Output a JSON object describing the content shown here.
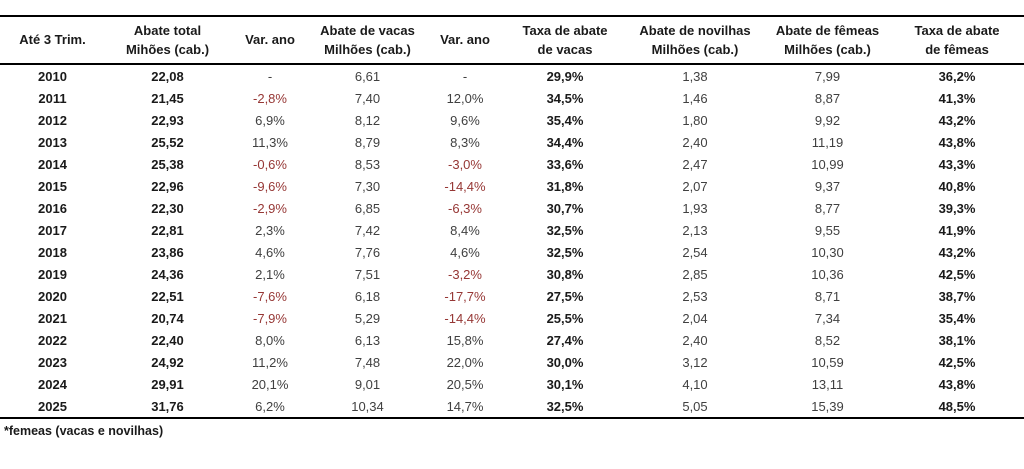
{
  "colors": {
    "negative_value": "#963735",
    "bold_text": "#1a1a1a",
    "regular_text": "#404040",
    "border": "#000000"
  },
  "chart_data": {
    "type": "table",
    "title": "",
    "footnote": "*femeas (vacas e novilhas)",
    "columns": [
      {
        "line1": "Até 3 Trim.",
        "line2": ""
      },
      {
        "line1": "Abate total",
        "line2": "Mihões (cab.)"
      },
      {
        "line1": "Var. ano",
        "line2": ""
      },
      {
        "line1": "Abate de vacas",
        "line2": "Milhões (cab.)"
      },
      {
        "line1": "Var. ano",
        "line2": ""
      },
      {
        "line1": "Taxa de abate",
        "line2": "de vacas"
      },
      {
        "line1": "Abate de novilhas",
        "line2": "Milhões (cab.)"
      },
      {
        "line1": "Abate de fêmeas",
        "line2": "Milhões (cab.)"
      },
      {
        "line1": "Taxa de abate",
        "line2": "de fêmeas"
      }
    ],
    "rows": [
      [
        "2010",
        "22,08",
        "-",
        "6,61",
        "-",
        "29,9%",
        "1,38",
        "7,99",
        "36,2%"
      ],
      [
        "2011",
        "21,45",
        "-2,8%",
        "7,40",
        "12,0%",
        "34,5%",
        "1,46",
        "8,87",
        "41,3%"
      ],
      [
        "2012",
        "22,93",
        "6,9%",
        "8,12",
        "9,6%",
        "35,4%",
        "1,80",
        "9,92",
        "43,2%"
      ],
      [
        "2013",
        "25,52",
        "11,3%",
        "8,79",
        "8,3%",
        "34,4%",
        "2,40",
        "11,19",
        "43,8%"
      ],
      [
        "2014",
        "25,38",
        "-0,6%",
        "8,53",
        "-3,0%",
        "33,6%",
        "2,47",
        "10,99",
        "43,3%"
      ],
      [
        "2015",
        "22,96",
        "-9,6%",
        "7,30",
        "-14,4%",
        "31,8%",
        "2,07",
        "9,37",
        "40,8%"
      ],
      [
        "2016",
        "22,30",
        "-2,9%",
        "6,85",
        "-6,3%",
        "30,7%",
        "1,93",
        "8,77",
        "39,3%"
      ],
      [
        "2017",
        "22,81",
        "2,3%",
        "7,42",
        "8,4%",
        "32,5%",
        "2,13",
        "9,55",
        "41,9%"
      ],
      [
        "2018",
        "23,86",
        "4,6%",
        "7,76",
        "4,6%",
        "32,5%",
        "2,54",
        "10,30",
        "43,2%"
      ],
      [
        "2019",
        "24,36",
        "2,1%",
        "7,51",
        "-3,2%",
        "30,8%",
        "2,85",
        "10,36",
        "42,5%"
      ],
      [
        "2020",
        "22,51",
        "-7,6%",
        "6,18",
        "-17,7%",
        "27,5%",
        "2,53",
        "8,71",
        "38,7%"
      ],
      [
        "2021",
        "20,74",
        "-7,9%",
        "5,29",
        "-14,4%",
        "25,5%",
        "2,04",
        "7,34",
        "35,4%"
      ],
      [
        "2022",
        "22,40",
        "8,0%",
        "6,13",
        "15,8%",
        "27,4%",
        "2,40",
        "8,52",
        "38,1%"
      ],
      [
        "2023",
        "24,92",
        "11,2%",
        "7,48",
        "22,0%",
        "30,0%",
        "3,12",
        "10,59",
        "42,5%"
      ],
      [
        "2024",
        "29,91",
        "20,1%",
        "9,01",
        "20,5%",
        "30,1%",
        "4,10",
        "13,11",
        "43,8%"
      ],
      [
        "2025",
        "31,76",
        "6,2%",
        "10,34",
        "14,7%",
        "32,5%",
        "5,05",
        "15,39",
        "48,5%"
      ]
    ],
    "bold_columns": [
      0,
      1,
      5,
      8
    ],
    "variation_columns": [
      2,
      4
    ]
  }
}
